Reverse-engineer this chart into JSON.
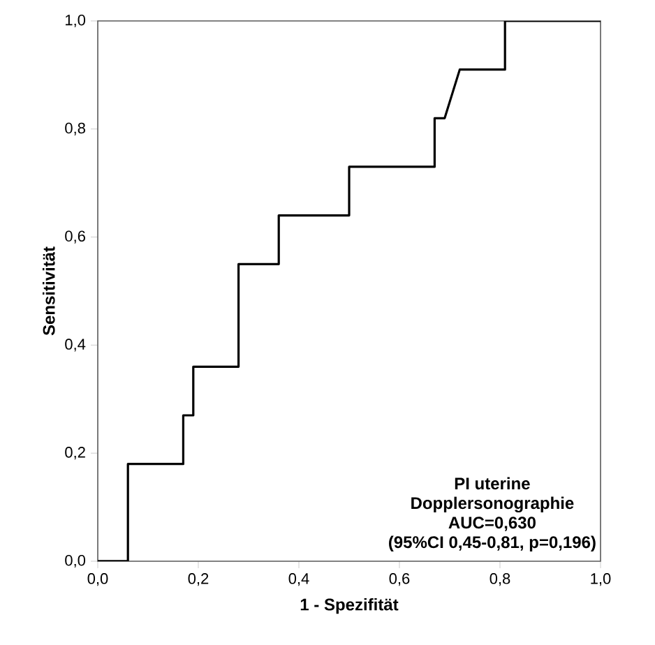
{
  "chart_data": {
    "type": "line",
    "xlabel": "1 - Spezifität",
    "ylabel": "Sensitivität",
    "x": [
      0,
      0.06,
      0.06,
      0.17,
      0.17,
      0.19,
      0.19,
      0.28,
      0.28,
      0.36,
      0.36,
      0.5,
      0.5,
      0.67,
      0.67,
      0.69,
      0.72,
      0.81,
      0.81,
      1
    ],
    "series": [
      {
        "color": "#000000",
        "values": [
          0,
          0,
          0.18,
          0.18,
          0.27,
          0.27,
          0.36,
          0.36,
          0.55,
          0.55,
          0.64,
          0.64,
          0.73,
          0.73,
          0.82,
          0.82,
          0.91,
          0.91,
          1,
          1
        ]
      }
    ],
    "xlim": [
      0,
      1
    ],
    "ylim": [
      0,
      1
    ],
    "xticks": [
      {
        "value": 0,
        "label": "0,0"
      },
      {
        "value": 0.2,
        "label": "0,2"
      },
      {
        "value": 0.4,
        "label": "0,4"
      },
      {
        "value": 0.6,
        "label": "0,6"
      },
      {
        "value": 0.8,
        "label": "0,8"
      },
      {
        "value": 1,
        "label": "1,0"
      }
    ],
    "yticks": [
      {
        "value": 0,
        "label": "0,0"
      },
      {
        "value": 0.2,
        "label": "0,2"
      },
      {
        "value": 0.4,
        "label": "0,4"
      },
      {
        "value": 0.6,
        "label": "0,6"
      },
      {
        "value": 0.8,
        "label": "0,8"
      },
      {
        "value": 1,
        "label": "1,0"
      }
    ],
    "marker": "none",
    "line_style": "solid",
    "annotations": [
      "PI uterine",
      "Dopplersonographie",
      "AUC=0,630",
      "(95%CI 0,45-0,81, p=0,196)"
    ]
  }
}
